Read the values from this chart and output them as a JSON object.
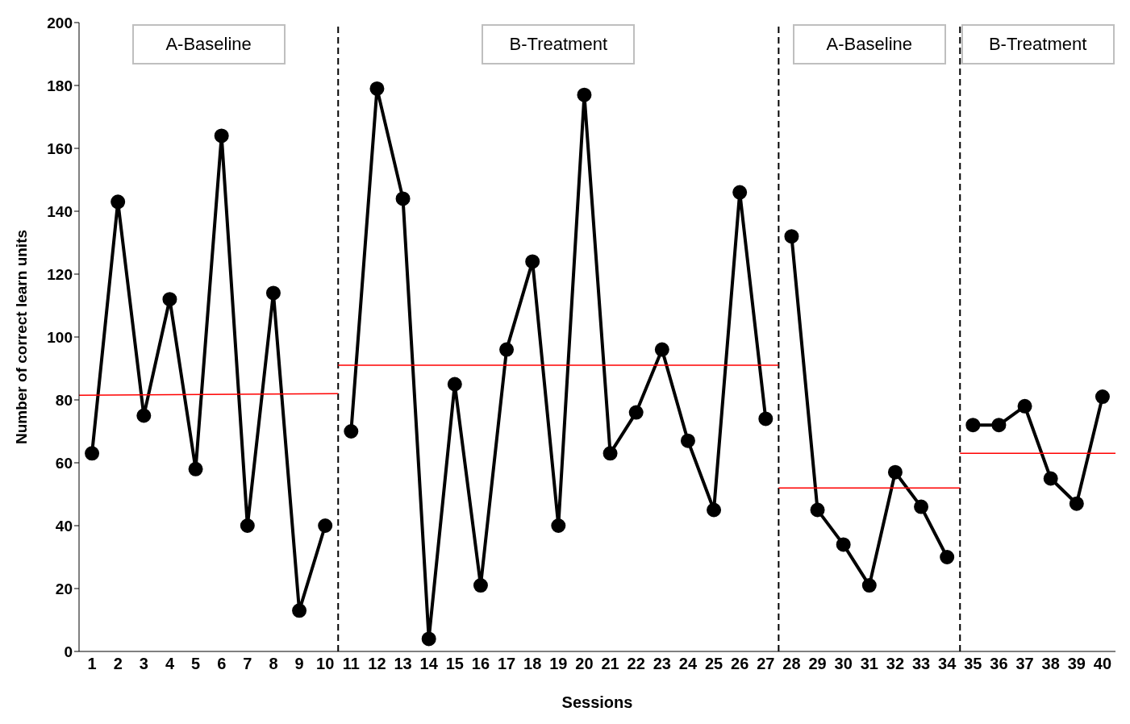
{
  "chart_data": {
    "type": "line",
    "xlabel": "Sessions",
    "ylabel": "Number of correct learn units",
    "xlim": [
      0.5,
      40.5
    ],
    "xticks": [
      1,
      2,
      3,
      4,
      5,
      6,
      7,
      8,
      9,
      10,
      11,
      12,
      13,
      14,
      15,
      16,
      17,
      18,
      19,
      20,
      21,
      22,
      23,
      24,
      25,
      26,
      27,
      28,
      29,
      30,
      31,
      32,
      33,
      34,
      35,
      36,
      37,
      38,
      39,
      40
    ],
    "ylim": [
      0,
      200
    ],
    "yticks": [
      0,
      20,
      40,
      60,
      80,
      100,
      120,
      140,
      160,
      180,
      200
    ],
    "grid": false,
    "marker": "circle",
    "line_style": "solid",
    "series": [
      {
        "color": "#000000",
        "x": [
          1,
          2,
          3,
          4,
          5,
          6,
          7,
          8,
          9,
          10
        ],
        "values": [
          63,
          143,
          75,
          112,
          58,
          164,
          40,
          114,
          13,
          40
        ]
      },
      {
        "color": "#000000",
        "x": [
          11,
          12,
          13,
          14,
          15,
          16,
          17,
          18,
          19,
          20,
          21,
          22,
          23,
          24,
          25,
          26,
          27
        ],
        "values": [
          70,
          179,
          144,
          4,
          85,
          21,
          96,
          124,
          40,
          177,
          63,
          76,
          96,
          67,
          45,
          146,
          74
        ]
      },
      {
        "color": "#000000",
        "x": [
          28,
          29,
          30,
          31,
          32,
          33,
          34
        ],
        "values": [
          132,
          45,
          34,
          21,
          57,
          46,
          30
        ]
      },
      {
        "color": "#000000",
        "x": [
          35,
          36,
          37,
          38,
          39,
          40
        ],
        "values": [
          72,
          72,
          78,
          55,
          47,
          81
        ]
      },
      {
        "color": "#ff0000",
        "marker": "none",
        "x": [
          0.5,
          10.5
        ],
        "values": [
          81.5,
          82
        ]
      },
      {
        "color": "#ff0000",
        "marker": "none",
        "x": [
          10.5,
          27.5
        ],
        "values": [
          91,
          91
        ]
      },
      {
        "color": "#ff0000",
        "marker": "none",
        "x": [
          27.5,
          34.5
        ],
        "values": [
          52,
          52
        ]
      },
      {
        "color": "#ff0000",
        "marker": "none",
        "x": [
          34.5,
          40.5
        ],
        "values": [
          63,
          63
        ]
      }
    ],
    "ref_lines": [
      {
        "axis": "x",
        "value": 10.5,
        "color": "#000000",
        "line_style": "dashed"
      },
      {
        "axis": "x",
        "value": 27.5,
        "color": "#000000",
        "line_style": "dashed"
      },
      {
        "axis": "x",
        "value": 34.5,
        "color": "#000000",
        "line_style": "dashed"
      }
    ],
    "annotations": [
      "A-Baseline",
      "B-Treatment",
      "A-Baseline",
      "B-Treatment"
    ]
  }
}
